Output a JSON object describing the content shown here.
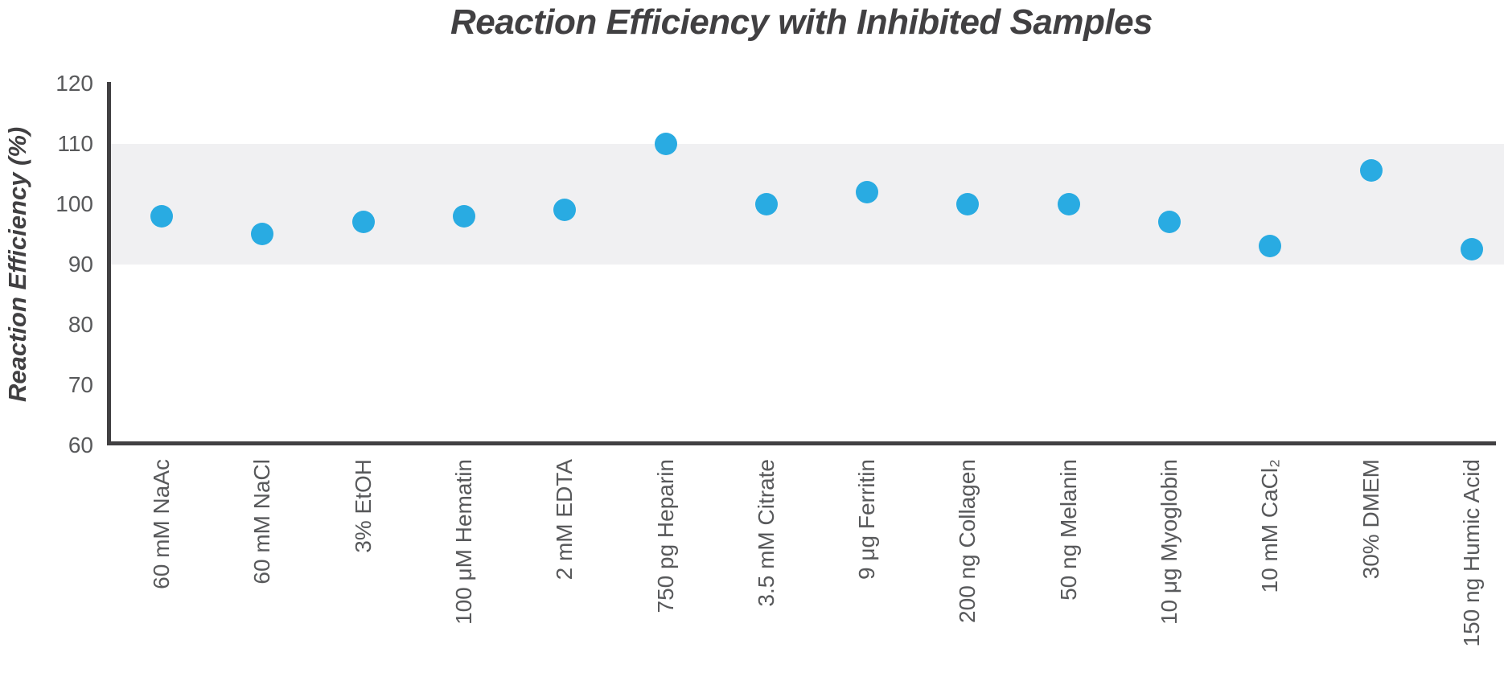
{
  "chart_data": {
    "type": "scatter",
    "title": "Reaction Efficiency with Inhibited Samples",
    "xlabel": "",
    "ylabel": "Reaction Efficiency (%)",
    "ylim": [
      60,
      120
    ],
    "yticks": [
      120,
      110,
      100,
      90,
      80,
      70,
      60
    ],
    "grid": false,
    "legend": false,
    "reference_band": {
      "from": 90,
      "to": 110
    },
    "categories": [
      "60 mM NaAc",
      "60 mM NaCl",
      "3% EtOH",
      "100 μM Hematin",
      "2 mM EDTA",
      "750 pg Heparin",
      "3.5 mM Citrate",
      "9 μg Ferritin",
      "200 ng Collagen",
      "50 ng Melanin",
      "10 μg Myoglobin",
      "10 mM CaCl₂",
      "30% DMEM",
      "150 ng Humic Acid"
    ],
    "values": [
      98,
      95,
      97,
      98,
      99,
      110,
      100,
      102,
      100,
      100,
      97,
      93,
      105.5,
      92.5
    ],
    "colors": {
      "marker": "#29ABE2",
      "band": "#F0F0F2",
      "axis": "#414042",
      "tick_text": "#58595B",
      "title_text": "#414042"
    }
  }
}
